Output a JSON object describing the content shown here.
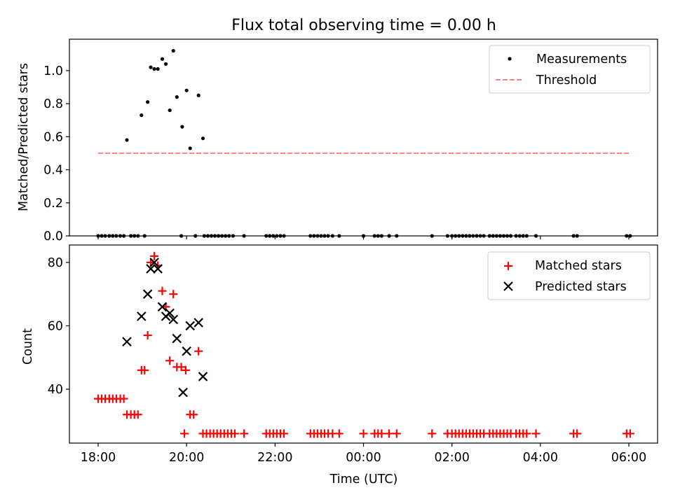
{
  "title": "Flux total observing time = 0.00 h",
  "xlabel": "Time (UTC)",
  "x_tick_labels": [
    "18:00",
    "20:00",
    "22:00",
    "00:00",
    "02:00",
    "04:00",
    "06:00"
  ],
  "chart_data": [
    {
      "type": "scatter",
      "ylabel": "Matched/Predicted stars",
      "x_unit": "hours after 18:00 UTC",
      "xlim": [
        -0.65,
        12.65
      ],
      "ylim": [
        0,
        1.19
      ],
      "y_ticks": [
        "0.0",
        "0.2",
        "0.4",
        "0.6",
        "0.8",
        "1.0"
      ],
      "legend": {
        "position": "top-right",
        "entries": [
          "Measurements",
          "Threshold"
        ]
      },
      "colors": {
        "measurements": "#000000",
        "threshold": "#ff7f7f"
      },
      "threshold": {
        "name": "Threshold",
        "y": 0.5,
        "x_range": [
          0.0,
          12.0
        ]
      },
      "series": [
        {
          "name": "Measurements",
          "points": [
            [
              0.0,
              0
            ],
            [
              0.08,
              0
            ],
            [
              0.16,
              0
            ],
            [
              0.25,
              0
            ],
            [
              0.33,
              0
            ],
            [
              0.41,
              0
            ],
            [
              0.5,
              0
            ],
            [
              0.58,
              0
            ],
            [
              0.65,
              0.58
            ],
            [
              0.98,
              0.73
            ],
            [
              1.12,
              0.81
            ],
            [
              1.19,
              1.02
            ],
            [
              1.27,
              1.01
            ],
            [
              1.35,
              1.01
            ],
            [
              1.45,
              1.07
            ],
            [
              1.53,
              1.04
            ],
            [
              1.62,
              0.76
            ],
            [
              1.7,
              1.12
            ],
            [
              1.78,
              0.84
            ],
            [
              1.9,
              0.66
            ],
            [
              2.0,
              0.88
            ],
            [
              2.08,
              0.53
            ],
            [
              2.27,
              0.85
            ],
            [
              2.37,
              0.59
            ],
            [
              0.74,
              0
            ],
            [
              0.82,
              0
            ],
            [
              0.9,
              0
            ],
            [
              1.05,
              0
            ],
            [
              1.88,
              0
            ],
            [
              2.2,
              0
            ],
            [
              2.4,
              0
            ],
            [
              2.48,
              0
            ],
            [
              2.56,
              0
            ],
            [
              2.64,
              0
            ],
            [
              2.72,
              0
            ],
            [
              2.8,
              0
            ],
            [
              2.88,
              0
            ],
            [
              2.96,
              0
            ],
            [
              3.05,
              0
            ],
            [
              3.3,
              0
            ],
            [
              3.8,
              0
            ],
            [
              3.88,
              0
            ],
            [
              3.96,
              0
            ],
            [
              4.04,
              0
            ],
            [
              4.12,
              0
            ],
            [
              4.2,
              0
            ],
            [
              4.8,
              0
            ],
            [
              4.88,
              0
            ],
            [
              4.96,
              0
            ],
            [
              5.04,
              0
            ],
            [
              5.12,
              0
            ],
            [
              5.2,
              0
            ],
            [
              5.3,
              0
            ],
            [
              5.45,
              0
            ],
            [
              6.0,
              0
            ],
            [
              6.25,
              0
            ],
            [
              6.33,
              0
            ],
            [
              6.41,
              0
            ],
            [
              6.58,
              0
            ],
            [
              6.75,
              0
            ],
            [
              7.55,
              0
            ],
            [
              7.9,
              0
            ],
            [
              8.0,
              0
            ],
            [
              8.08,
              0
            ],
            [
              8.16,
              0
            ],
            [
              8.24,
              0
            ],
            [
              8.32,
              0
            ],
            [
              8.4,
              0
            ],
            [
              8.48,
              0
            ],
            [
              8.56,
              0
            ],
            [
              8.64,
              0
            ],
            [
              8.72,
              0
            ],
            [
              8.85,
              0
            ],
            [
              8.93,
              0
            ],
            [
              9.01,
              0
            ],
            [
              9.09,
              0
            ],
            [
              9.17,
              0
            ],
            [
              9.25,
              0
            ],
            [
              9.33,
              0
            ],
            [
              9.45,
              0
            ],
            [
              9.53,
              0
            ],
            [
              9.61,
              0
            ],
            [
              9.69,
              0
            ],
            [
              9.9,
              0
            ],
            [
              10.75,
              0
            ],
            [
              10.83,
              0
            ],
            [
              11.95,
              0
            ],
            [
              12.03,
              0
            ]
          ]
        }
      ]
    },
    {
      "type": "scatter",
      "ylabel": "Count",
      "x_unit": "hours after 18:00 UTC",
      "xlim": [
        -0.65,
        12.65
      ],
      "ylim": [
        23,
        85.5
      ],
      "y_ticks": [
        "40",
        "60",
        "80"
      ],
      "legend": {
        "position": "top-right",
        "entries": [
          "Matched stars",
          "Predicted stars"
        ]
      },
      "colors": {
        "matched": "#ff0000",
        "predicted": "#000000"
      },
      "series": [
        {
          "name": "Matched stars",
          "marker": "plus",
          "points": [
            [
              0.0,
              37
            ],
            [
              0.08,
              37
            ],
            [
              0.16,
              37
            ],
            [
              0.25,
              37
            ],
            [
              0.33,
              37
            ],
            [
              0.41,
              37
            ],
            [
              0.5,
              37
            ],
            [
              0.58,
              37
            ],
            [
              0.65,
              32
            ],
            [
              0.74,
              32
            ],
            [
              0.82,
              32
            ],
            [
              0.9,
              32
            ],
            [
              0.98,
              46
            ],
            [
              1.05,
              46
            ],
            [
              1.12,
              57
            ],
            [
              1.19,
              80
            ],
            [
              1.27,
              82
            ],
            [
              1.35,
              79
            ],
            [
              1.45,
              71
            ],
            [
              1.53,
              66
            ],
            [
              1.62,
              49
            ],
            [
              1.7,
              70
            ],
            [
              1.78,
              47
            ],
            [
              1.88,
              47
            ],
            [
              1.98,
              46
            ],
            [
              2.08,
              32
            ],
            [
              2.16,
              32
            ],
            [
              2.27,
              52
            ],
            [
              1.95,
              26
            ],
            [
              2.37,
              26
            ],
            [
              2.45,
              26
            ],
            [
              2.53,
              26
            ],
            [
              2.61,
              26
            ],
            [
              2.69,
              26
            ],
            [
              2.77,
              26
            ],
            [
              2.85,
              26
            ],
            [
              2.93,
              26
            ],
            [
              3.01,
              26
            ],
            [
              3.09,
              26
            ],
            [
              3.3,
              26
            ],
            [
              3.8,
              26
            ],
            [
              3.88,
              26
            ],
            [
              3.96,
              26
            ],
            [
              4.04,
              26
            ],
            [
              4.12,
              26
            ],
            [
              4.2,
              26
            ],
            [
              4.8,
              26
            ],
            [
              4.88,
              26
            ],
            [
              4.96,
              26
            ],
            [
              5.04,
              26
            ],
            [
              5.12,
              26
            ],
            [
              5.2,
              26
            ],
            [
              5.3,
              26
            ],
            [
              5.45,
              26
            ],
            [
              6.0,
              26
            ],
            [
              6.25,
              26
            ],
            [
              6.33,
              26
            ],
            [
              6.41,
              26
            ],
            [
              6.58,
              26
            ],
            [
              6.75,
              26
            ],
            [
              7.55,
              26
            ],
            [
              7.9,
              26
            ],
            [
              8.0,
              26
            ],
            [
              8.08,
              26
            ],
            [
              8.16,
              26
            ],
            [
              8.24,
              26
            ],
            [
              8.32,
              26
            ],
            [
              8.4,
              26
            ],
            [
              8.48,
              26
            ],
            [
              8.56,
              26
            ],
            [
              8.64,
              26
            ],
            [
              8.72,
              26
            ],
            [
              8.85,
              26
            ],
            [
              8.93,
              26
            ],
            [
              9.01,
              26
            ],
            [
              9.09,
              26
            ],
            [
              9.17,
              26
            ],
            [
              9.25,
              26
            ],
            [
              9.33,
              26
            ],
            [
              9.45,
              26
            ],
            [
              9.53,
              26
            ],
            [
              9.61,
              26
            ],
            [
              9.69,
              26
            ],
            [
              9.9,
              26
            ],
            [
              10.75,
              26
            ],
            [
              10.83,
              26
            ],
            [
              11.95,
              26
            ],
            [
              12.03,
              26
            ]
          ]
        },
        {
          "name": "Predicted stars",
          "marker": "x",
          "points": [
            [
              0.65,
              55
            ],
            [
              0.98,
              63
            ],
            [
              1.12,
              70
            ],
            [
              1.19,
              78
            ],
            [
              1.27,
              80
            ],
            [
              1.35,
              78
            ],
            [
              1.45,
              66
            ],
            [
              1.53,
              63
            ],
            [
              1.62,
              64
            ],
            [
              1.7,
              62
            ],
            [
              1.78,
              56
            ],
            [
              1.92,
              39
            ],
            [
              2.0,
              52
            ],
            [
              2.08,
              60
            ],
            [
              2.27,
              61
            ],
            [
              2.37,
              44
            ]
          ]
        }
      ]
    }
  ]
}
